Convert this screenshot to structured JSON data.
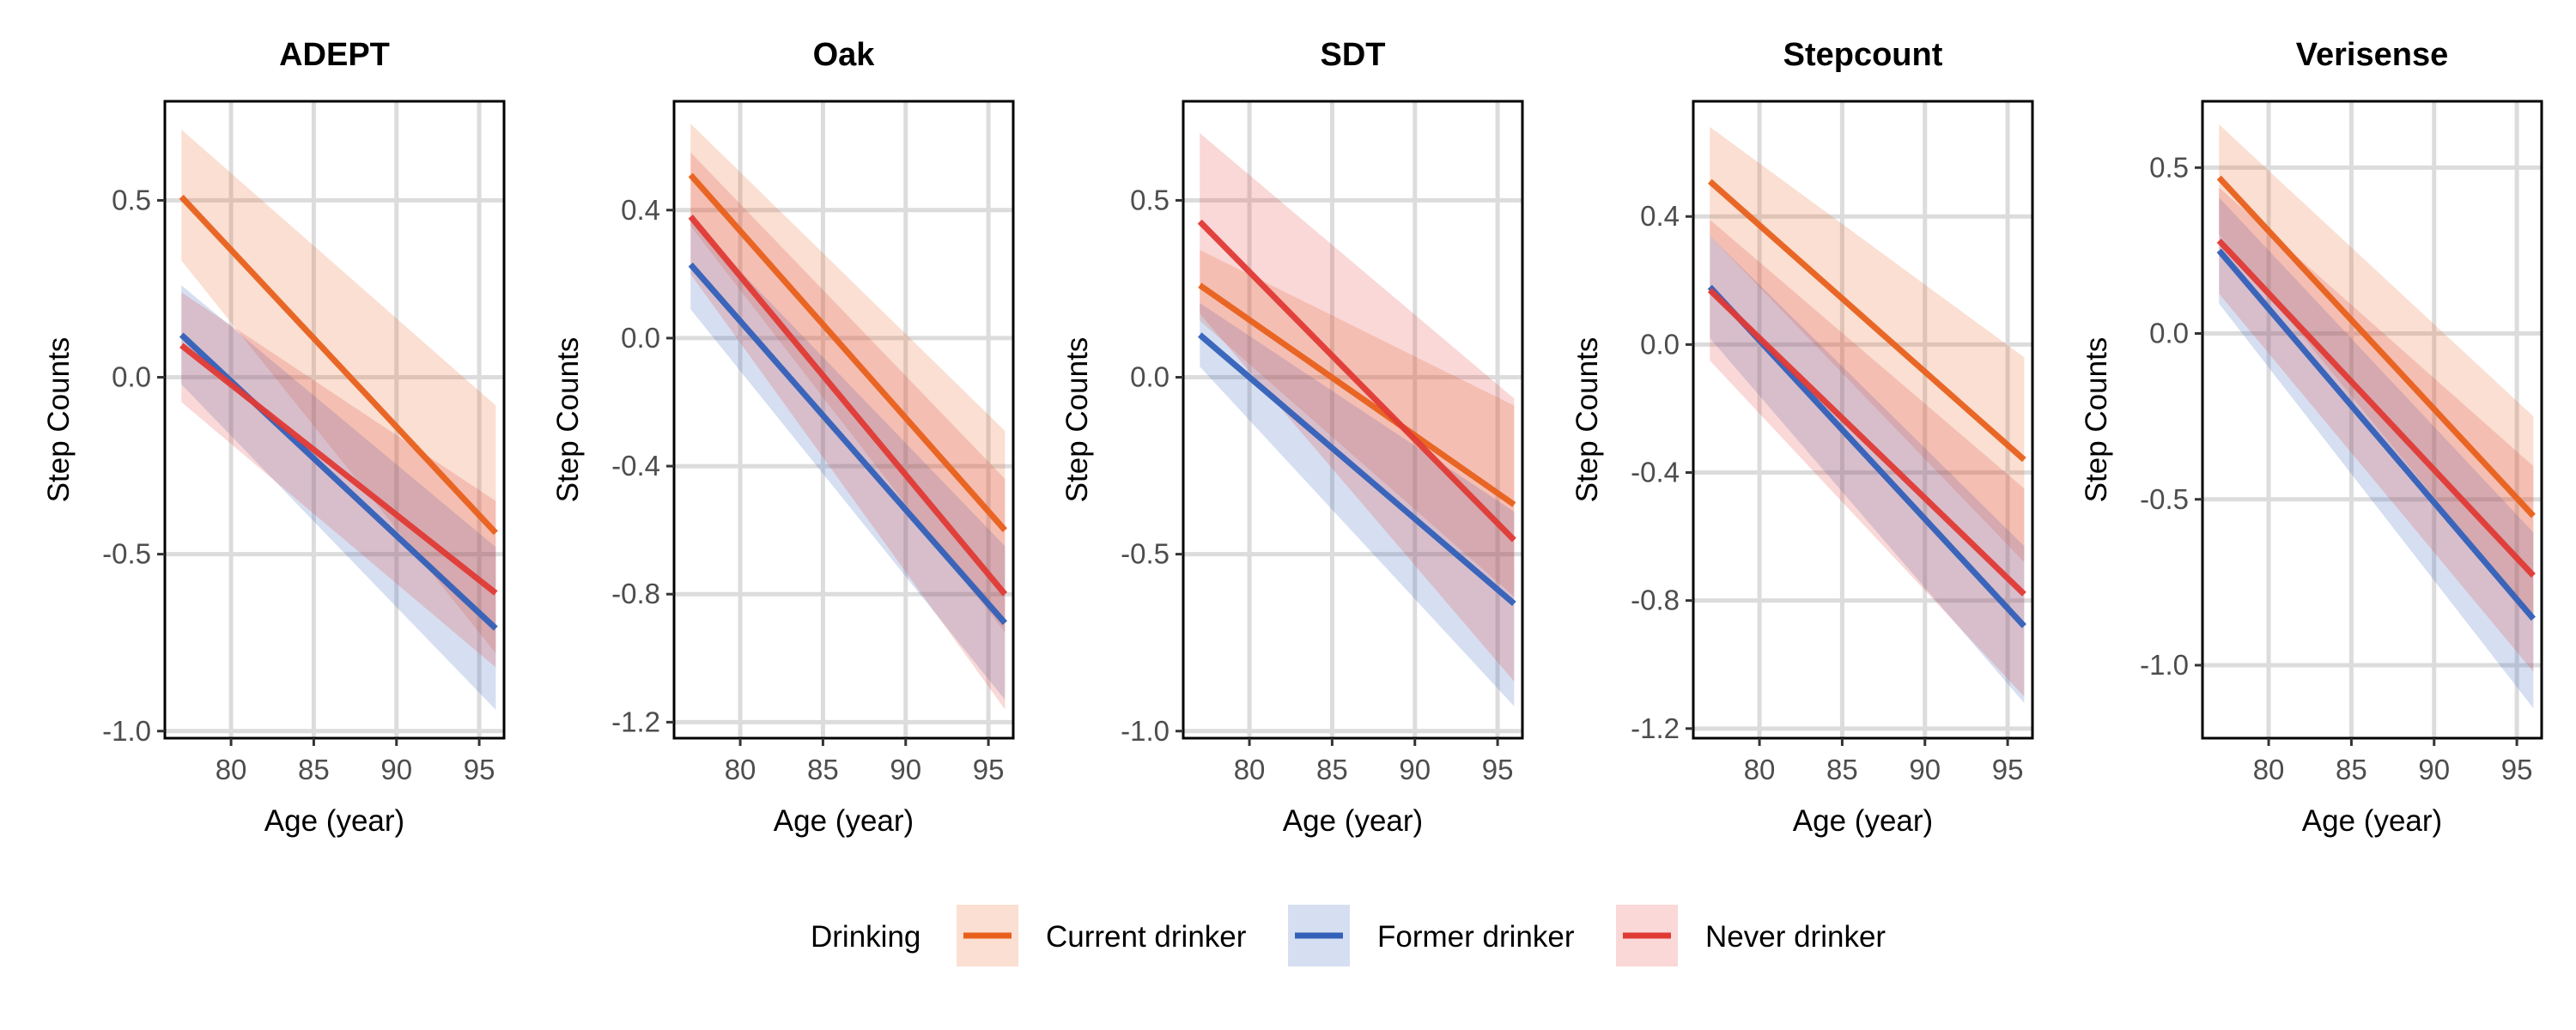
{
  "legend": {
    "title": "Drinking",
    "position": "bottom",
    "entries": [
      "Current drinker",
      "Former drinker",
      "Never drinker"
    ]
  },
  "colors": {
    "Current drinker": "#E8601C",
    "Former drinker": "#3360B8",
    "Never drinker": "#E03A35"
  },
  "chart_data": [
    {
      "type": "line",
      "title": "ADEPT",
      "xlabel": "Age (year)",
      "ylabel": "Step Counts",
      "xlim": [
        76,
        96.5
      ],
      "ylim": [
        -1.02,
        0.78
      ],
      "xticks": [
        80,
        85,
        90,
        95
      ],
      "xtick_labels": [
        "80",
        "85",
        "90",
        "95"
      ],
      "yticks": [
        0.5,
        0.0,
        -0.5,
        -1.0
      ],
      "ytick_labels": [
        "0.5",
        "0.0",
        "-0.5",
        "-1.0"
      ],
      "grid": true,
      "series": [
        {
          "name": "Current drinker",
          "x": [
            77,
            96
          ],
          "y": [
            0.51,
            -0.44
          ],
          "lower": [
            0.33,
            -0.78
          ],
          "upper": [
            0.7,
            -0.08
          ]
        },
        {
          "name": "Former drinker",
          "x": [
            77,
            96
          ],
          "y": [
            0.12,
            -0.71
          ],
          "lower": [
            -0.02,
            -0.94
          ],
          "upper": [
            0.26,
            -0.48
          ]
        },
        {
          "name": "Never drinker",
          "x": [
            77,
            96
          ],
          "y": [
            0.09,
            -0.61
          ],
          "lower": [
            -0.07,
            -0.82
          ],
          "upper": [
            0.24,
            -0.35
          ]
        }
      ]
    },
    {
      "type": "line",
      "title": "Oak",
      "xlabel": "Age (year)",
      "ylabel": "Step Counts",
      "xlim": [
        76,
        96.5
      ],
      "ylim": [
        -1.25,
        0.74
      ],
      "xticks": [
        80,
        85,
        90,
        95
      ],
      "xtick_labels": [
        "80",
        "85",
        "90",
        "95"
      ],
      "yticks": [
        0.4,
        0.0,
        -0.4,
        -0.8,
        -1.2
      ],
      "ytick_labels": [
        "0.4",
        "0.0",
        "-0.4",
        "-0.8",
        "-1.2"
      ],
      "grid": true,
      "series": [
        {
          "name": "Current drinker",
          "x": [
            77,
            96
          ],
          "y": [
            0.51,
            -0.6
          ],
          "lower": [
            0.35,
            -0.92
          ],
          "upper": [
            0.67,
            -0.29
          ]
        },
        {
          "name": "Former drinker",
          "x": [
            77,
            96
          ],
          "y": [
            0.23,
            -0.89
          ],
          "lower": [
            0.09,
            -1.13
          ],
          "upper": [
            0.37,
            -0.65
          ]
        },
        {
          "name": "Never drinker",
          "x": [
            77,
            96
          ],
          "y": [
            0.38,
            -0.8
          ],
          "lower": [
            0.2,
            -1.16
          ],
          "upper": [
            0.58,
            -0.44
          ]
        }
      ]
    },
    {
      "type": "line",
      "title": "SDT",
      "xlabel": "Age (year)",
      "ylabel": "Step Counts",
      "xlim": [
        76,
        96.5
      ],
      "ylim": [
        -1.02,
        0.78
      ],
      "xticks": [
        80,
        85,
        90,
        95
      ],
      "xtick_labels": [
        "80",
        "85",
        "90",
        "95"
      ],
      "yticks": [
        0.5,
        0.0,
        -0.5,
        -1.0
      ],
      "ytick_labels": [
        "0.5",
        "0.0",
        "-0.5",
        "-1.0"
      ],
      "grid": true,
      "series": [
        {
          "name": "Current drinker",
          "x": [
            77,
            96
          ],
          "y": [
            0.26,
            -0.36
          ],
          "lower": [
            0.16,
            -0.62
          ],
          "upper": [
            0.36,
            -0.08
          ]
        },
        {
          "name": "Former drinker",
          "x": [
            77,
            96
          ],
          "y": [
            0.12,
            -0.64
          ],
          "lower": [
            0.03,
            -0.93
          ],
          "upper": [
            0.21,
            -0.38
          ]
        },
        {
          "name": "Never drinker",
          "x": [
            77,
            96
          ],
          "y": [
            0.44,
            -0.46
          ],
          "lower": [
            0.18,
            -0.86
          ],
          "upper": [
            0.69,
            -0.06
          ]
        }
      ]
    },
    {
      "type": "line",
      "title": "Stepcount",
      "xlabel": "Age (year)",
      "ylabel": "Step Counts",
      "xlim": [
        76,
        96.5
      ],
      "ylim": [
        -1.23,
        0.76
      ],
      "xticks": [
        80,
        85,
        90,
        95
      ],
      "xtick_labels": [
        "80",
        "85",
        "90",
        "95"
      ],
      "yticks": [
        0.4,
        0.0,
        -0.4,
        -0.8,
        -1.2
      ],
      "ytick_labels": [
        "0.4",
        "0.0",
        "-0.4",
        "-0.8",
        "-1.2"
      ],
      "grid": true,
      "series": [
        {
          "name": "Current drinker",
          "x": [
            77,
            96
          ],
          "y": [
            0.51,
            -0.36
          ],
          "lower": [
            0.34,
            -0.68
          ],
          "upper": [
            0.68,
            -0.04
          ]
        },
        {
          "name": "Former drinker",
          "x": [
            77,
            96
          ],
          "y": [
            0.18,
            -0.88
          ],
          "lower": [
            0.02,
            -1.12
          ],
          "upper": [
            0.34,
            -0.63
          ]
        },
        {
          "name": "Never drinker",
          "x": [
            77,
            96
          ],
          "y": [
            0.17,
            -0.78
          ],
          "lower": [
            -0.05,
            -1.1
          ],
          "upper": [
            0.39,
            -0.45
          ]
        }
      ]
    },
    {
      "type": "line",
      "title": "Verisense",
      "xlabel": "Age (year)",
      "ylabel": "Step Counts",
      "xlim": [
        76,
        96.5
      ],
      "ylim": [
        -1.22,
        0.7
      ],
      "xticks": [
        80,
        85,
        90,
        95
      ],
      "xtick_labels": [
        "80",
        "85",
        "90",
        "95"
      ],
      "yticks": [
        0.5,
        0.0,
        -0.5,
        -1.0
      ],
      "ytick_labels": [
        "0.5",
        "0.0",
        "-0.5",
        "-1.0"
      ],
      "grid": true,
      "series": [
        {
          "name": "Current drinker",
          "x": [
            77,
            96
          ],
          "y": [
            0.47,
            -0.55
          ],
          "lower": [
            0.3,
            -0.86
          ],
          "upper": [
            0.63,
            -0.25
          ]
        },
        {
          "name": "Former drinker",
          "x": [
            77,
            96
          ],
          "y": [
            0.25,
            -0.86
          ],
          "lower": [
            0.09,
            -1.13
          ],
          "upper": [
            0.41,
            -0.6
          ]
        },
        {
          "name": "Never drinker",
          "x": [
            77,
            96
          ],
          "y": [
            0.28,
            -0.73
          ],
          "lower": [
            0.12,
            -1.02
          ],
          "upper": [
            0.44,
            -0.4
          ]
        }
      ]
    }
  ]
}
